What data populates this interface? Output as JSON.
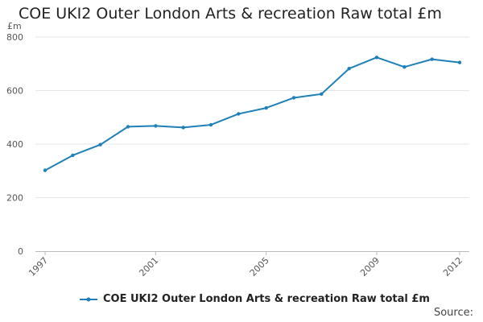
{
  "chart_data": {
    "type": "line",
    "title": "COE UKI2 Outer London Arts & recreation Raw total £m",
    "ylabel": "£m",
    "xlabel": "",
    "ylim": [
      0,
      800
    ],
    "yticks": [
      0,
      200,
      400,
      600,
      800
    ],
    "xticks": [
      1997,
      2001,
      2005,
      2009,
      2012
    ],
    "grid": true,
    "legend_position": "bottom",
    "series_color": "#1f7fb8",
    "series": [
      {
        "name": "COE UKI2 Outer London Arts & recreation Raw total £m",
        "x": [
          1997,
          1998,
          1999,
          2000,
          2001,
          2002,
          2003,
          2004,
          2005,
          2006,
          2007,
          2008,
          2009,
          2010,
          2011,
          2012
        ],
        "y": [
          302,
          358,
          398,
          465,
          468,
          462,
          472,
          513,
          535,
          573,
          587,
          682,
          724,
          688,
          717,
          705
        ]
      }
    ],
    "source_label": "Source:"
  }
}
